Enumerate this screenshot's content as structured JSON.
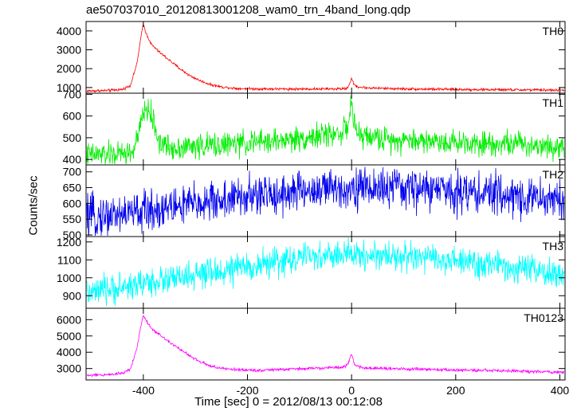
{
  "title": "ae507037010_20120813001208_wam0_trn_4band_long.qdp",
  "chart_data": {
    "type": "line",
    "title": "ae507037010_20120813001208_wam0_trn_4band_long.qdp",
    "xlabel": "Time [sec] 0 = 2012/08/13 00:12:08",
    "ylabel": "Counts/sec",
    "xlim": [
      -510,
      410
    ],
    "x_ticks": [
      -400,
      -200,
      0,
      200,
      400
    ],
    "grid": false,
    "panels": [
      {
        "name": "TH0",
        "color": "#ff0000",
        "ylim": [
          700,
          4500
        ],
        "y_ticks": [
          1000,
          2000,
          3000,
          4000
        ],
        "noise": 35,
        "x": [
          -505,
          -470,
          -440,
          -425,
          -412,
          -405,
          -400,
          -395,
          -385,
          -370,
          -350,
          -330,
          -310,
          -290,
          -270,
          -250,
          -220,
          -180,
          -100,
          -20,
          -8,
          0,
          4,
          12,
          30,
          100,
          200,
          300,
          405
        ],
        "y": [
          820,
          840,
          900,
          1100,
          2300,
          3600,
          4380,
          3900,
          3300,
          2900,
          2450,
          2000,
          1620,
          1350,
          1150,
          1030,
          950,
          930,
          920,
          930,
          960,
          1480,
          1180,
          1030,
          980,
          930,
          900,
          880,
          860
        ]
      },
      {
        "name": "TH1",
        "color": "#00ee00",
        "ylim": [
          375,
          705
        ],
        "y_ticks": [
          400,
          500,
          600,
          700
        ],
        "noise": 28,
        "x": [
          -505,
          -440,
          -420,
          -408,
          -400,
          -390,
          -380,
          -370,
          -350,
          -300,
          -200,
          -100,
          -30,
          -8,
          0,
          6,
          20,
          60,
          200,
          300,
          405
        ],
        "y": [
          420,
          425,
          435,
          520,
          620,
          630,
          570,
          480,
          455,
          460,
          475,
          495,
          520,
          540,
          670,
          530,
          510,
          495,
          480,
          475,
          460
        ]
      },
      {
        "name": "TH2",
        "color": "#0000ee",
        "ylim": [
          495,
          722
        ],
        "y_ticks": [
          500,
          550,
          600,
          650,
          700
        ],
        "noise": 32,
        "x": [
          -505,
          -400,
          -300,
          -200,
          -100,
          0,
          100,
          200,
          300,
          405
        ],
        "y": [
          555,
          575,
          600,
          620,
          638,
          650,
          648,
          640,
          625,
          610
        ]
      },
      {
        "name": "TH3",
        "color": "#00ffff",
        "ylim": [
          830,
          1230
        ],
        "y_ticks": [
          900,
          1000,
          1100,
          1200
        ],
        "noise": 40,
        "x": [
          -505,
          -400,
          -300,
          -200,
          -100,
          0,
          100,
          200,
          300,
          405
        ],
        "y": [
          910,
          970,
          1010,
          1060,
          1110,
          1130,
          1120,
          1090,
          1060,
          1010
        ]
      },
      {
        "name": "TH0123",
        "color": "#ff00ff",
        "ylim": [
          2300,
          6700
        ],
        "y_ticks": [
          3000,
          4000,
          5000,
          6000
        ],
        "noise": 45,
        "x": [
          -505,
          -470,
          -440,
          -425,
          -412,
          -405,
          -400,
          -395,
          -385,
          -370,
          -350,
          -330,
          -310,
          -290,
          -270,
          -250,
          -220,
          -180,
          -100,
          -20,
          -8,
          0,
          4,
          12,
          30,
          100,
          200,
          300,
          405
        ],
        "y": [
          2580,
          2620,
          2720,
          2950,
          4300,
          5600,
          6300,
          5950,
          5500,
          5100,
          4650,
          4200,
          3750,
          3400,
          3150,
          3000,
          2930,
          2890,
          2980,
          3080,
          3200,
          3900,
          3350,
          3100,
          3030,
          2970,
          2910,
          2860,
          2770
        ]
      }
    ]
  }
}
